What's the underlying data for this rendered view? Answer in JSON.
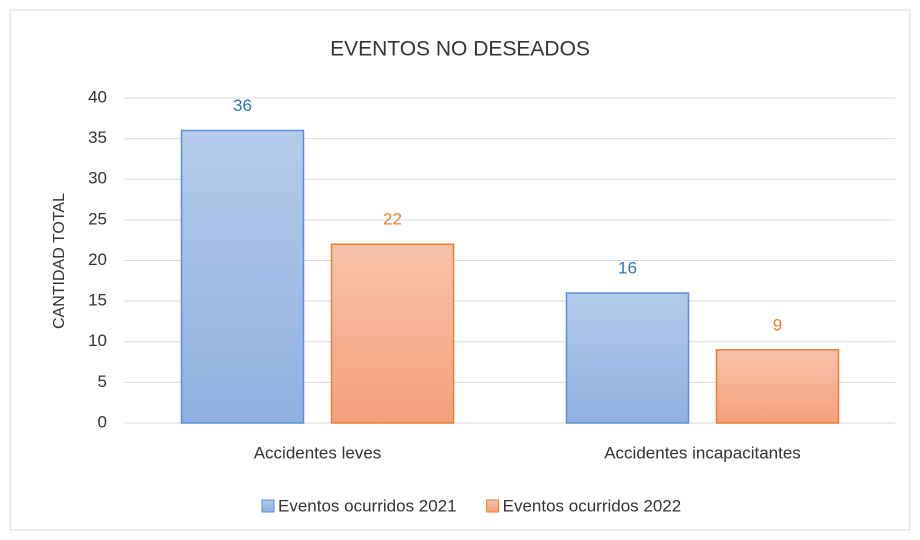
{
  "chart_data": {
    "type": "bar",
    "title": "EVENTOS NO DESEADOS",
    "y_label": "CANTIDAD TOTAL",
    "categories": [
      "Accidentes leves",
      "Accidentes incapacitantes"
    ],
    "series": [
      {
        "name": "Eventos ocurridos 2021",
        "color": "#8fb1e0",
        "edge": "#5b8fd3",
        "label_color": "#2e75b6",
        "values": [
          36,
          16
        ]
      },
      {
        "name": "Eventos ocurridos 2022",
        "color": "#f5a985",
        "edge": "#ed7d31",
        "label_color": "#ed7d31",
        "values": [
          22,
          9
        ]
      }
    ],
    "ylim": [
      0,
      40
    ],
    "yticks": [
      0,
      5,
      10,
      15,
      20,
      25,
      30,
      35,
      40
    ],
    "grid": true,
    "legend": "bottom"
  }
}
